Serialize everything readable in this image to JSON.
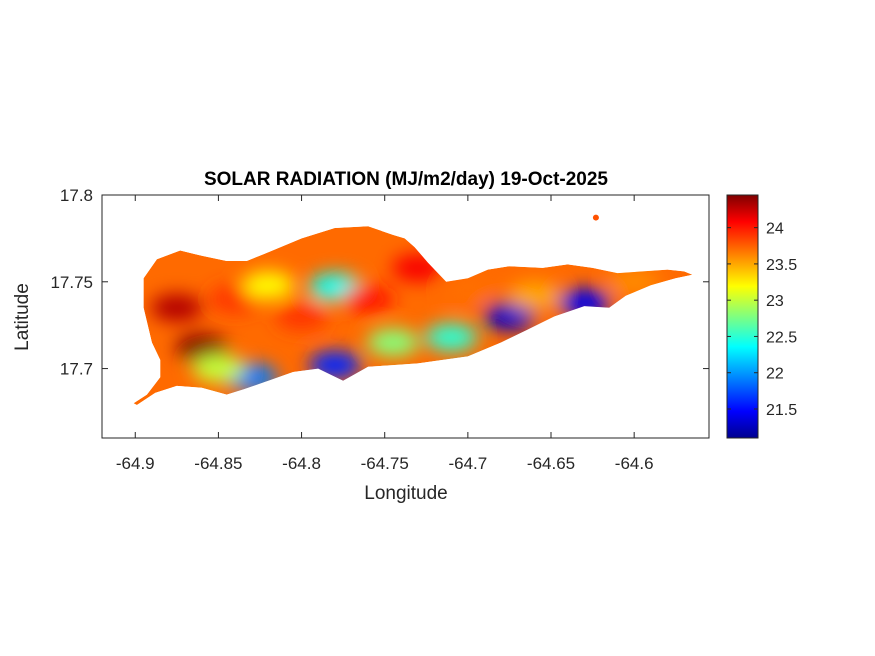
{
  "chart_data": {
    "type": "heatmap",
    "title": "SOLAR RADIATION (MJ/m2/day) 19-Oct-2025",
    "xlabel": "Longitude",
    "ylabel": "Latitude",
    "xlim": [
      -64.92,
      -64.555
    ],
    "ylim": [
      17.66,
      17.8
    ],
    "xticks": [
      {
        "value": -64.9,
        "label": "-64.9"
      },
      {
        "value": -64.85,
        "label": "-64.85"
      },
      {
        "value": -64.8,
        "label": "-64.8"
      },
      {
        "value": -64.75,
        "label": "-64.75"
      },
      {
        "value": -64.7,
        "label": "-64.7"
      },
      {
        "value": -64.65,
        "label": "-64.65"
      },
      {
        "value": -64.6,
        "label": "-64.6"
      }
    ],
    "yticks": [
      {
        "value": 17.7,
        "label": "17.7"
      },
      {
        "value": 17.75,
        "label": "17.75"
      },
      {
        "value": 17.8,
        "label": "17.8"
      }
    ],
    "colorbar": {
      "colormap": "jet",
      "range": [
        21.1,
        24.45
      ],
      "ticks": [
        {
          "value": 21.5,
          "label": "21.5"
        },
        {
          "value": 22,
          "label": "22"
        },
        {
          "value": 22.5,
          "label": "22.5"
        },
        {
          "value": 23,
          "label": "23"
        },
        {
          "value": 23.5,
          "label": "23.5"
        },
        {
          "value": 24,
          "label": "24"
        }
      ],
      "stops": [
        "#00008f",
        "#0000ff",
        "#00ffff",
        "#ffff00",
        "#ff0000",
        "#800000"
      ]
    },
    "island_outline": [
      [
        -64.901,
        17.68
      ],
      [
        -64.893,
        17.685
      ],
      [
        -64.885,
        17.695
      ],
      [
        -64.885,
        17.705
      ],
      [
        -64.89,
        17.715
      ],
      [
        -64.895,
        17.735
      ],
      [
        -64.895,
        17.752
      ],
      [
        -64.887,
        17.763
      ],
      [
        -64.873,
        17.768
      ],
      [
        -64.86,
        17.765
      ],
      [
        -64.845,
        17.762
      ],
      [
        -64.833,
        17.762
      ],
      [
        -64.82,
        17.767
      ],
      [
        -64.8,
        17.775
      ],
      [
        -64.78,
        17.781
      ],
      [
        -64.76,
        17.782
      ],
      [
        -64.745,
        17.777
      ],
      [
        -64.738,
        17.775
      ],
      [
        -64.732,
        17.77
      ],
      [
        -64.724,
        17.761
      ],
      [
        -64.713,
        17.75
      ],
      [
        -64.7,
        17.752
      ],
      [
        -64.688,
        17.757
      ],
      [
        -64.675,
        17.759
      ],
      [
        -64.655,
        17.758
      ],
      [
        -64.64,
        17.76
      ],
      [
        -64.625,
        17.758
      ],
      [
        -64.61,
        17.755
      ],
      [
        -64.595,
        17.756
      ],
      [
        -64.58,
        17.757
      ],
      [
        -64.57,
        17.756
      ],
      [
        -64.565,
        17.754
      ],
      [
        -64.575,
        17.752
      ],
      [
        -64.59,
        17.748
      ],
      [
        -64.605,
        17.742
      ],
      [
        -64.615,
        17.735
      ],
      [
        -64.63,
        17.736
      ],
      [
        -64.648,
        17.73
      ],
      [
        -64.665,
        17.722
      ],
      [
        -64.68,
        17.715
      ],
      [
        -64.7,
        17.707
      ],
      [
        -64.715,
        17.705
      ],
      [
        -64.73,
        17.703
      ],
      [
        -64.745,
        17.702
      ],
      [
        -64.76,
        17.701
      ],
      [
        -64.775,
        17.693
      ],
      [
        -64.79,
        17.7
      ],
      [
        -64.805,
        17.698
      ],
      [
        -64.82,
        17.693
      ],
      [
        -64.835,
        17.688
      ],
      [
        -64.845,
        17.685
      ],
      [
        -64.86,
        17.689
      ],
      [
        -64.875,
        17.69
      ],
      [
        -64.888,
        17.686
      ],
      [
        -64.899,
        17.679
      ]
    ],
    "islet": {
      "lon": -64.623,
      "lat": 17.787,
      "value": 23.8
    },
    "field_blobs": [
      {
        "lon": -64.875,
        "lat": 17.735,
        "value": 24.3
      },
      {
        "lon": -64.86,
        "lat": 17.712,
        "value": 24.45
      },
      {
        "lon": -64.84,
        "lat": 17.74,
        "value": 23.9
      },
      {
        "lon": -64.82,
        "lat": 17.748,
        "value": 23.2
      },
      {
        "lon": -64.8,
        "lat": 17.73,
        "value": 23.9
      },
      {
        "lon": -64.78,
        "lat": 17.747,
        "value": 22.4
      },
      {
        "lon": -64.76,
        "lat": 17.74,
        "value": 24.0
      },
      {
        "lon": -64.73,
        "lat": 17.758,
        "value": 24.1
      },
      {
        "lon": -64.7,
        "lat": 17.745,
        "value": 23.7
      },
      {
        "lon": -64.745,
        "lat": 17.715,
        "value": 22.8
      },
      {
        "lon": -64.71,
        "lat": 17.718,
        "value": 22.5
      },
      {
        "lon": -64.675,
        "lat": 17.73,
        "value": 21.3
      },
      {
        "lon": -64.66,
        "lat": 17.742,
        "value": 23.5
      },
      {
        "lon": -64.63,
        "lat": 17.738,
        "value": 21.4
      },
      {
        "lon": -64.6,
        "lat": 17.75,
        "value": 23.6
      },
      {
        "lon": -64.78,
        "lat": 17.702,
        "value": 21.6
      },
      {
        "lon": -64.83,
        "lat": 17.695,
        "value": 21.9
      },
      {
        "lon": -64.85,
        "lat": 17.7,
        "value": 23.0
      }
    ]
  }
}
